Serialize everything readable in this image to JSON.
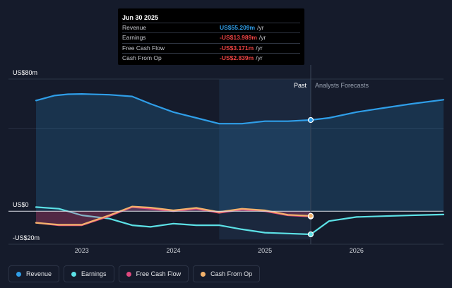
{
  "tooltip": {
    "date": "Jun 30 2025",
    "rows": [
      {
        "label": "Revenue",
        "value": "US$55.209m",
        "unit": "/yr",
        "color": "#2f9ee8"
      },
      {
        "label": "Earnings",
        "value": "-US$13.989m",
        "unit": "/yr",
        "color": "#ef4444"
      },
      {
        "label": "Free Cash Flow",
        "value": "-US$3.171m",
        "unit": "/yr",
        "color": "#ef4444"
      },
      {
        "label": "Cash From Op",
        "value": "-US$2.839m",
        "unit": "/yr",
        "color": "#ef4444"
      }
    ]
  },
  "legend": [
    {
      "label": "Revenue",
      "color": "#2f9ee8"
    },
    {
      "label": "Earnings",
      "color": "#5ce1e6"
    },
    {
      "label": "Free Cash Flow",
      "color": "#e0487e"
    },
    {
      "label": "Cash From Op",
      "color": "#f3b26b"
    }
  ],
  "chart_data": {
    "type": "line",
    "y_labels": {
      "top": "US$80m",
      "zero": "US$0",
      "bottom": "-US$20m"
    },
    "ylim": [
      -20,
      80
    ],
    "x_ticks": [
      {
        "label": "2023",
        "x": 2023.0
      },
      {
        "label": "2024",
        "x": 2024.0
      },
      {
        "label": "2025",
        "x": 2025.0
      },
      {
        "label": "2026",
        "x": 2026.0
      }
    ],
    "xlim": [
      2022.4,
      2026.95
    ],
    "past_label": "Past",
    "forecast_label": "Analysts Forecasts",
    "past_start": 2024.5,
    "divider": 2025.5,
    "series": [
      {
        "name": "Revenue",
        "color": "#2f9ee8",
        "fill": true,
        "x": [
          2022.5,
          2022.7,
          2022.85,
          2023.0,
          2023.3,
          2023.55,
          2023.75,
          2024.0,
          2024.25,
          2024.5,
          2024.75,
          2025.0,
          2025.25,
          2025.5,
          2025.7,
          2026.0,
          2026.3,
          2026.6,
          2026.95
        ],
        "y": [
          67,
          70,
          70.8,
          71,
          70.5,
          69.5,
          65,
          60,
          56.5,
          53,
          53,
          54.5,
          54.5,
          55.2,
          56.5,
          60,
          62.5,
          65,
          67.5
        ]
      },
      {
        "name": "Earnings",
        "color": "#5ce1e6",
        "x": [
          2022.5,
          2022.75,
          2023.0,
          2023.3,
          2023.55,
          2023.75,
          2024.0,
          2024.25,
          2024.5,
          2024.75,
          2025.0,
          2025.25,
          2025.5,
          2025.7,
          2026.0,
          2026.3,
          2026.6,
          2026.95
        ],
        "y": [
          2.5,
          1.5,
          -2.5,
          -4.5,
          -8.5,
          -9.5,
          -7.5,
          -8.5,
          -8.5,
          -11,
          -13,
          -13.5,
          -14,
          -6,
          -3.5,
          -3,
          -2.5,
          -2
        ]
      },
      {
        "name": "Free Cash Flow",
        "color": "#e0487e",
        "fill": true,
        "x": [
          2022.5,
          2022.75,
          2023.0,
          2023.3,
          2023.55,
          2023.75,
          2024.0,
          2024.25,
          2024.5,
          2024.75,
          2025.0,
          2025.25,
          2025.5
        ],
        "y": [
          -7,
          -8.5,
          -8.5,
          -3,
          2.5,
          1.5,
          0,
          1.5,
          -1,
          1,
          0,
          -2.5,
          -3.2
        ]
      },
      {
        "name": "Cash From Op",
        "color": "#f3b26b",
        "x": [
          2022.5,
          2022.75,
          2023.0,
          2023.3,
          2023.55,
          2023.75,
          2024.0,
          2024.25,
          2024.5,
          2024.75,
          2025.0,
          2025.25,
          2025.5
        ],
        "y": [
          -7,
          -8.2,
          -8.2,
          -2.5,
          2.8,
          2.2,
          0.5,
          2,
          -0.5,
          1.5,
          0.5,
          -2.2,
          -2.8
        ]
      }
    ]
  }
}
